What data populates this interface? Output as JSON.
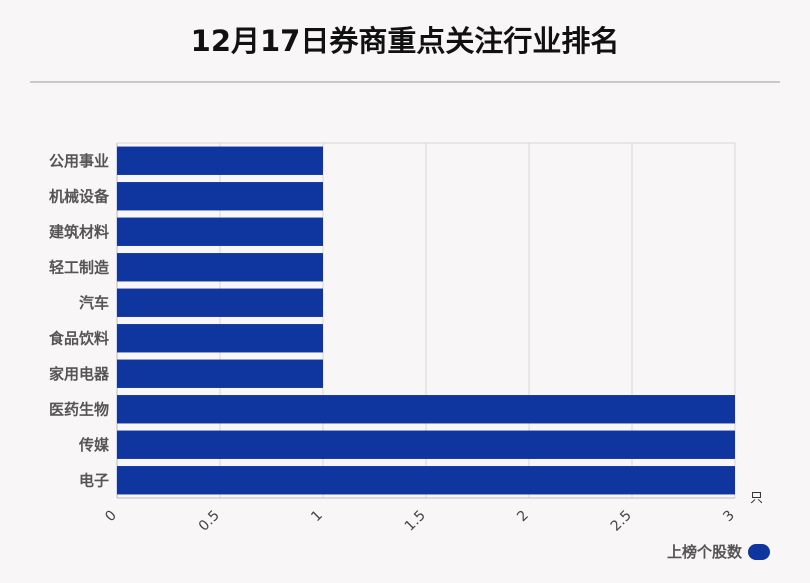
{
  "title": "12月17日券商重点关注行业排名",
  "colors": {
    "bar": "#0e369e",
    "grid": "#d6d6d6",
    "axis": "#bbbbbb"
  },
  "chart_data": {
    "type": "bar",
    "orientation": "horizontal",
    "title": "12月17日券商重点关注行业排名",
    "categories": [
      "公用事业",
      "机械设备",
      "建筑材料",
      "轻工制造",
      "汽车",
      "食品饮料",
      "家用电器",
      "医药生物",
      "传媒",
      "电子"
    ],
    "series": [
      {
        "name": "上榜个股数",
        "values": [
          1,
          1,
          1,
          1,
          1,
          1,
          1,
          3,
          3,
          3
        ]
      }
    ],
    "xlim": [
      0,
      3
    ],
    "xticks": [
      "0",
      "0.5",
      "1",
      "1.5",
      "2",
      "2.5",
      "3"
    ],
    "xunit": "只",
    "grid": true,
    "legend_position": "bottom-right"
  }
}
